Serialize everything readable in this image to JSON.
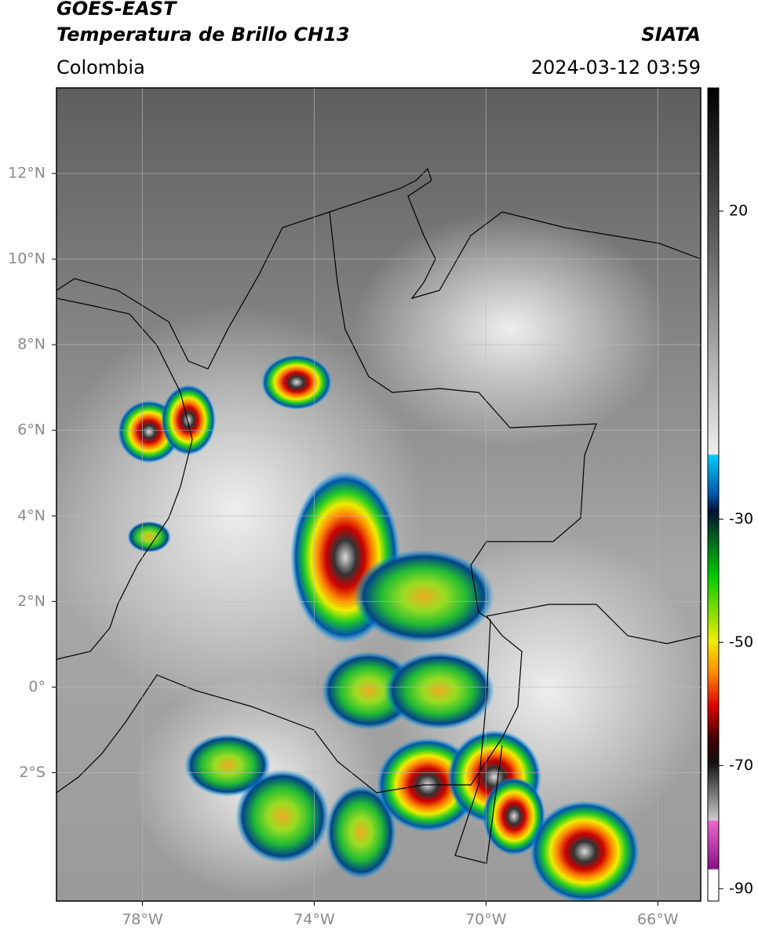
{
  "chart_data": {
    "type": "map",
    "title": "GOES-EAST",
    "subtitle": "Temperatura de Brillo CH13",
    "region": "Colombia",
    "source": "SIATA",
    "timestamp": "2024-03-12 03:59",
    "xlim": [
      -80,
      -65
    ],
    "ylim": [
      -5,
      14
    ],
    "xticks": [
      {
        "value": -78,
        "label": "78°W"
      },
      {
        "value": -74,
        "label": "74°W"
      },
      {
        "value": -70,
        "label": "70°W"
      },
      {
        "value": -66,
        "label": "66°W"
      }
    ],
    "yticks": [
      {
        "value": 12,
        "label": "12°N"
      },
      {
        "value": 10,
        "label": "10°N"
      },
      {
        "value": 8,
        "label": "8°N"
      },
      {
        "value": 6,
        "label": "6°N"
      },
      {
        "value": 4,
        "label": "4°N"
      },
      {
        "value": 2,
        "label": "2°N"
      },
      {
        "value": 0,
        "label": "0°"
      },
      {
        "value": -2,
        "label": "2°S"
      }
    ],
    "grid": true,
    "colorbar": {
      "lim": [
        -92,
        40
      ],
      "ticks": [
        20,
        -30,
        -50,
        -70,
        -90
      ]
    }
  }
}
